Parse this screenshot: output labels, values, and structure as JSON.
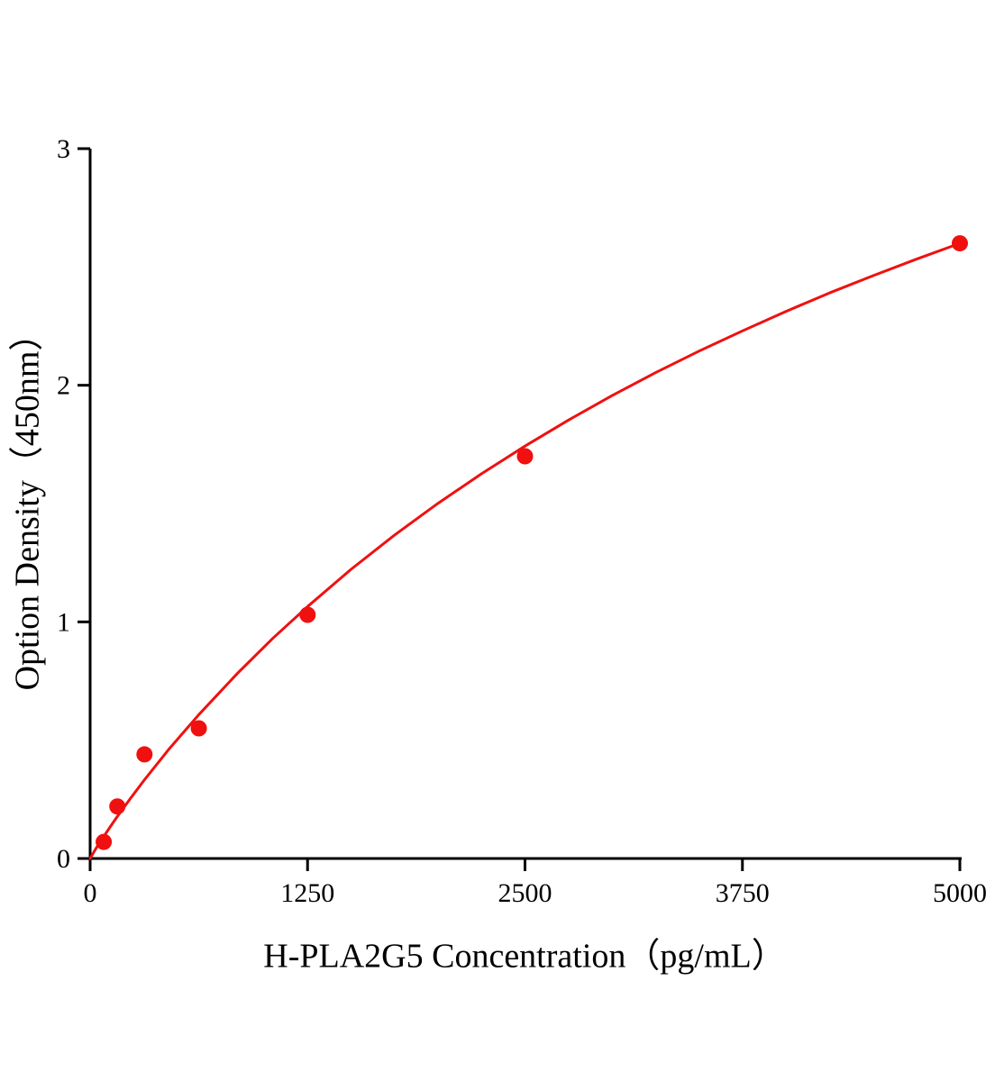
{
  "chart_data": {
    "type": "scatter",
    "title": "",
    "xlabel": "H-PLA2G5 Concentration（pg/mL）",
    "ylabel": "Option Density（450nm）",
    "xlim": [
      0,
      5000
    ],
    "ylim": [
      0,
      3
    ],
    "x_ticks": [
      "0",
      "1250",
      "2500",
      "3750",
      "5000"
    ],
    "x_tick_values": [
      0,
      1250,
      2500,
      3750,
      5000
    ],
    "y_ticks": [
      "0",
      "1",
      "2",
      "3"
    ],
    "y_tick_values": [
      0,
      1,
      2,
      3
    ],
    "grid": false,
    "legend": null,
    "colors": {
      "curve": "#f01010",
      "points": "#f01010",
      "axis": "#000000"
    },
    "points": [
      {
        "x": 78.1,
        "y": 0.07
      },
      {
        "x": 156.3,
        "y": 0.22
      },
      {
        "x": 312.5,
        "y": 0.44
      },
      {
        "x": 625,
        "y": 0.55
      },
      {
        "x": 1250,
        "y": 1.03
      },
      {
        "x": 2500,
        "y": 1.7
      },
      {
        "x": 5000,
        "y": 2.6
      }
    ],
    "curve": [
      [
        0,
        0.0
      ],
      [
        20,
        0.026
      ],
      [
        40,
        0.05
      ],
      [
        78,
        0.093
      ],
      [
        120,
        0.139
      ],
      [
        156,
        0.177
      ],
      [
        230,
        0.252
      ],
      [
        313,
        0.333
      ],
      [
        450,
        0.459
      ],
      [
        625,
        0.608
      ],
      [
        850,
        0.785
      ],
      [
        1050,
        0.93
      ],
      [
        1250,
        1.065
      ],
      [
        1500,
        1.222
      ],
      [
        1750,
        1.367
      ],
      [
        2000,
        1.501
      ],
      [
        2250,
        1.626
      ],
      [
        2500,
        1.743
      ],
      [
        2750,
        1.853
      ],
      [
        3000,
        1.956
      ],
      [
        3250,
        2.053
      ],
      [
        3500,
        2.144
      ],
      [
        3750,
        2.23
      ],
      [
        4000,
        2.312
      ],
      [
        4250,
        2.39
      ],
      [
        4500,
        2.463
      ],
      [
        4750,
        2.533
      ],
      [
        5000,
        2.6
      ]
    ]
  }
}
